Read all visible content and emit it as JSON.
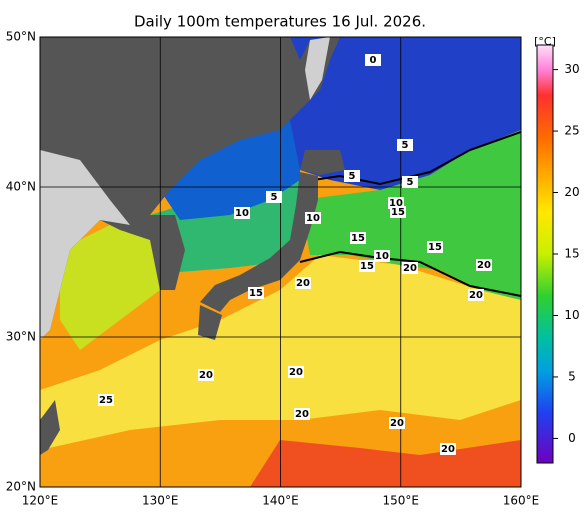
{
  "title": "Daily 100m temperatures 16 Jul. 2026.",
  "map": {
    "xlim": [
      120,
      160
    ],
    "ylim": [
      20,
      50
    ],
    "xticks": [
      {
        "value": 120,
        "label": "120°E"
      },
      {
        "value": 130,
        "label": "130°E"
      },
      {
        "value": 140,
        "label": "140°E"
      },
      {
        "value": 150,
        "label": "150°E"
      },
      {
        "value": 160,
        "label": "160°E"
      }
    ],
    "yticks": [
      {
        "value": 20,
        "label": "20°N"
      },
      {
        "value": 30,
        "label": "30°N"
      },
      {
        "value": 40,
        "label": "40°N"
      },
      {
        "value": 50,
        "label": "50°N"
      }
    ],
    "contour_labels": [
      "0",
      "5",
      "5",
      "5",
      "5",
      "10",
      "10",
      "10",
      "15",
      "15",
      "15",
      "10",
      "15",
      "20",
      "20",
      "20",
      "15",
      "20",
      "20",
      "20",
      "25",
      "20",
      "20",
      "20"
    ]
  },
  "colorbar": {
    "unit": "[°C]",
    "lim": [
      -2,
      32
    ],
    "ticks": [
      0,
      5,
      10,
      15,
      20,
      25,
      30
    ]
  }
}
